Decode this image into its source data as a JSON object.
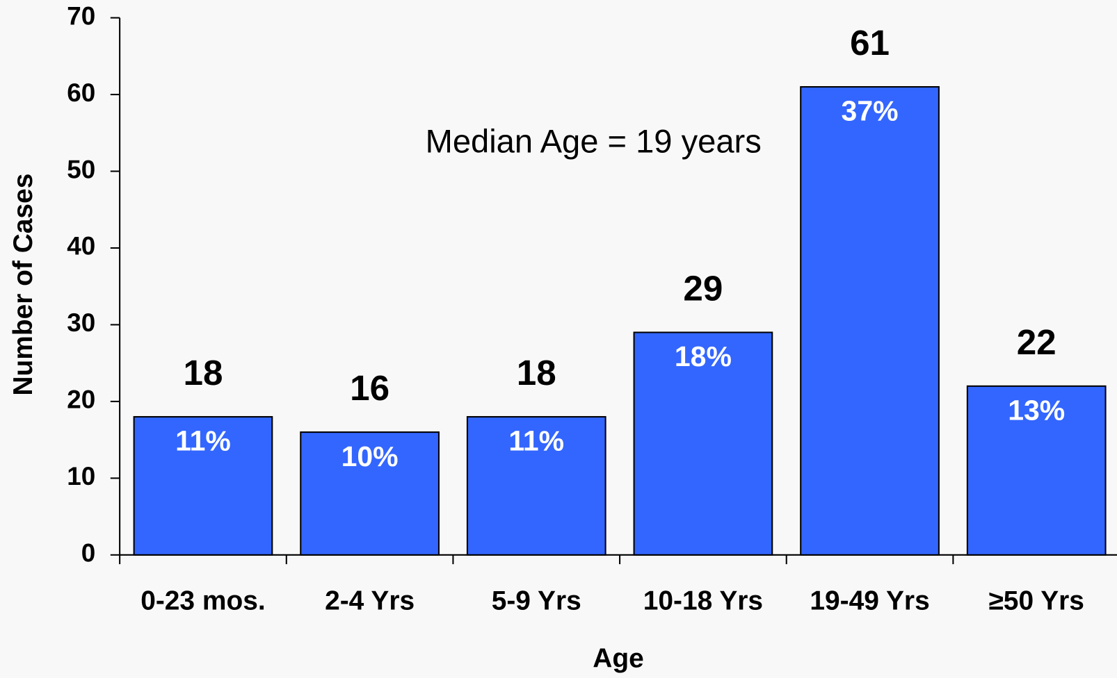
{
  "chart_data": {
    "type": "bar",
    "x_label": "Age",
    "y_label": "Number of Cases",
    "annotation": "Median Age = 19 years",
    "categories": [
      "0-23 mos.",
      "2-4 Yrs",
      "5-9 Yrs",
      "10-18 Yrs",
      "19-49 Yrs",
      "≥50 Yrs"
    ],
    "values": [
      18,
      16,
      18,
      29,
      61,
      22
    ],
    "percent_labels": [
      "11%",
      "10%",
      "11%",
      "18%",
      "37%",
      "13%"
    ],
    "color": "#3366ff",
    "ylim": [
      0,
      70
    ],
    "yticks": [
      0,
      10,
      20,
      30,
      40,
      50,
      60,
      70
    ]
  }
}
